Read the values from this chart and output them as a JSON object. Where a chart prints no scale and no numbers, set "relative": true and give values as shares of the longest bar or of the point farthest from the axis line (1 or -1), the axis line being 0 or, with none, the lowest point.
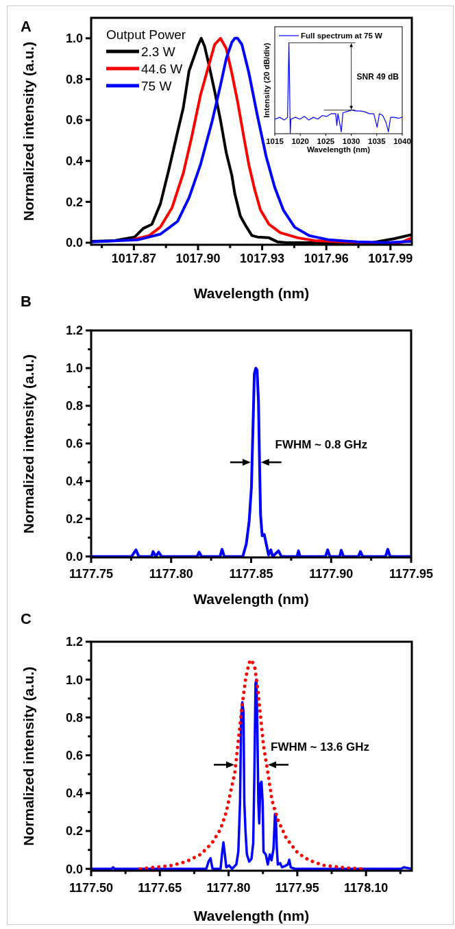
{
  "chart_data": [
    {
      "type": "line",
      "title": "A",
      "xlabel": "Wavelength (nm)",
      "ylabel": "Normalized intensity (a.u.)",
      "legend_title": "Output Power",
      "legend": "top left",
      "xlim": [
        1017.85,
        1018.0
      ],
      "ylim": [
        -0.01,
        1.1
      ],
      "xticks": [
        1017.87,
        {
          "value": 1017.9,
          "label": "1017.90"
        },
        1017.93,
        1017.96,
        1017.99,
        {
          "value": 1017.855,
          "label": null
        },
        {
          "value": 1017.885,
          "label": null
        },
        {
          "value": 1017.915,
          "label": null
        },
        {
          "value": 1017.945,
          "label": null
        },
        {
          "value": 1017.975,
          "label": null
        }
      ],
      "yticks": [
        {
          "value": 0,
          "label": "0.0"
        },
        0.2,
        0.4,
        0.6,
        0.8,
        {
          "value": 1,
          "label": "1.0"
        }
      ],
      "series": [
        {
          "name": "2.3 W",
          "color": "#000000",
          "x": [
            1017.8504,
            1017.861,
            1017.8704,
            1017.8744,
            1017.8784,
            1017.8824,
            1017.8864,
            1017.8904,
            1017.8931,
            1017.8958,
            1017.8985,
            1017.8998,
            1017.9015,
            1017.9031,
            1017.9051,
            1017.9078,
            1017.9105,
            1017.9132,
            1017.9158,
            1017.9172,
            1017.9198,
            1017.9225,
            1017.9252,
            1017.9278,
            1017.9332,
            1017.9372,
            1017.9412,
            1017.9546,
            1017.9679,
            1017.9813,
            1017.992,
            1018.0
          ],
          "values": [
            0.007,
            0.01,
            0.028,
            0.07,
            0.09,
            0.19,
            0.36,
            0.54,
            0.66,
            0.84,
            0.92,
            0.96,
            1.0,
            0.96,
            0.87,
            0.74,
            0.6,
            0.44,
            0.33,
            0.24,
            0.13,
            0.08,
            0.035,
            0.028,
            0.024,
            0.004,
            0,
            0,
            0,
            0,
            0.02,
            0.04
          ]
        },
        {
          "name": "44.6 W",
          "color": "#ff0000",
          "x": [
            1017.8691,
            1017.8771,
            1017.8824,
            1017.8878,
            1017.8931,
            1017.8971,
            1017.9011,
            1017.9051,
            1017.9078,
            1017.9105,
            1017.9132,
            1017.9158,
            1017.9185,
            1017.9212,
            1017.9238,
            1017.9265,
            1017.9292,
            1017.9332,
            1017.9385,
            1017.9466,
            1017.9546,
            1017.9679,
            1017.9813,
            1017.9947,
            1018.0
          ],
          "values": [
            0.014,
            0.035,
            0.077,
            0.17,
            0.34,
            0.52,
            0.72,
            0.87,
            0.97,
            1.0,
            0.95,
            0.83,
            0.69,
            0.53,
            0.38,
            0.26,
            0.16,
            0.09,
            0.049,
            0.024,
            0.01,
            0.004,
            0,
            0,
            0.024
          ]
        },
        {
          "name": "75 W",
          "color": "#0000ff",
          "x": [
            1017.8504,
            1017.8717,
            1017.8824,
            1017.8904,
            1017.8958,
            1017.9011,
            1017.9065,
            1017.9105,
            1017.9132,
            1017.9158,
            1017.9172,
            1017.9185,
            1017.9205,
            1017.9238,
            1017.9278,
            1017.9319,
            1017.9359,
            1017.9399,
            1017.9452,
            1017.9519,
            1017.9613,
            1017.9746,
            1017.988,
            1018.0
          ],
          "values": [
            0.004,
            0.014,
            0.042,
            0.104,
            0.22,
            0.38,
            0.59,
            0.77,
            0.9,
            0.98,
            1.0,
            1.0,
            0.97,
            0.83,
            0.62,
            0.42,
            0.27,
            0.16,
            0.076,
            0.035,
            0.014,
            0.004,
            0,
            0.007
          ]
        }
      ]
    },
    {
      "type": "line",
      "xlabel": "Wavelength (nm)",
      "ylabel": "Intensity (20 dB/div)",
      "legend": "top left",
      "relative": true,
      "xlim": [
        1015,
        1040
      ],
      "xticks": [
        1015,
        1020,
        1025,
        1030,
        1035,
        1040
      ],
      "annotations": [
        "SNR 49 dB"
      ],
      "series": [
        {
          "name": "Full spectrum at 75 W",
          "color": "#0000ff",
          "x": [
            1015.09,
            1015.97,
            1016.85,
            1017.5,
            1017.64,
            1017.77,
            1017.9,
            1018.03,
            1018.16,
            1019.04,
            1019.92,
            1020.8,
            1021.68,
            1022.56,
            1023.44,
            1024.32,
            1025.19,
            1026.07,
            1026.95,
            1027.17,
            1027.39,
            1028.05,
            1028.36,
            1028.93,
            1029.59,
            1030.03,
            1030.91,
            1031.79,
            1032.67,
            1033.55,
            1034.42,
            1035.08,
            1035.52,
            1036.18,
            1036.84,
            1037.28,
            1037.72,
            1038.38,
            1039.26,
            1039.96
          ],
          "values": [
            0.16,
            0.18,
            0.15,
            0.18,
            0.57,
            1.0,
            0.57,
            0.0,
            0.16,
            0.18,
            0.16,
            0.19,
            0.15,
            0.18,
            0.16,
            0.2,
            0.19,
            0.22,
            0.22,
            0.09,
            0.22,
            0.02,
            0.23,
            0.24,
            0.25,
            0.26,
            0.25,
            0.25,
            0.24,
            0.22,
            0.22,
            0.07,
            0.22,
            0.2,
            0.12,
            0.02,
            0.18,
            0.18,
            0.17,
            0.18
          ]
        }
      ]
    },
    {
      "type": "line",
      "title": "B",
      "xlabel": "Wavelength (nm)",
      "ylabel": "Normalized intensity (a.u.)",
      "xlim": [
        1177.75,
        1177.95
      ],
      "ylim": [
        -0.005,
        1.2
      ],
      "xticks": [
        1177.75,
        {
          "value": 1177.8,
          "label": "1177.80"
        },
        1177.85,
        {
          "value": 1177.9,
          "label": "1177.90"
        },
        1177.95,
        {
          "value": 1177.775,
          "label": null
        },
        {
          "value": 1177.825,
          "label": null
        },
        {
          "value": 1177.875,
          "label": null
        },
        {
          "value": 1177.925,
          "label": null
        }
      ],
      "yticks": [
        {
          "value": 0,
          "label": "0.0"
        },
        0.2,
        0.4,
        0.6,
        0.8,
        {
          "value": 1,
          "label": "1.0"
        },
        1.2,
        {
          "value": 0.1,
          "label": null
        },
        {
          "value": 0.3,
          "label": null
        },
        {
          "value": 0.5,
          "label": null
        },
        {
          "value": 0.7,
          "label": null
        },
        {
          "value": 0.9,
          "label": null
        },
        {
          "value": 1.1,
          "label": null
        }
      ],
      "annotations": [
        {
          "text": "FWHM ~ 0.8 GHz",
          "x": 1177.853,
          "y": 0.5
        }
      ],
      "series": [
        {
          "color": "#0000ff",
          "x": [
            1177.75,
            1177.7753,
            1177.778,
            1177.7798,
            1177.7878,
            1177.7887,
            1177.7905,
            1177.7922,
            1177.794,
            1177.8163,
            1177.8175,
            1177.819,
            1177.8306,
            1177.8318,
            1177.8332,
            1177.8448,
            1177.847,
            1177.8488,
            1177.8502,
            1177.8511,
            1177.852,
            1177.8529,
            1177.8537,
            1177.8546,
            1177.8552,
            1177.8559,
            1177.8569,
            1177.8582,
            1177.8594,
            1177.8609,
            1177.8623,
            1177.8635,
            1177.8671,
            1177.8689,
            1177.8787,
            1177.8796,
            1177.8805,
            1177.8965,
            1177.8978,
            1177.8992,
            1177.9054,
            1177.9063,
            1177.9077,
            1177.917,
            1177.9183,
            1177.9197,
            1177.934,
            1177.9354,
            1177.9368,
            1177.95
          ],
          "values": [
            0,
            0,
            0.035,
            0,
            0,
            0.026,
            0,
            0.023,
            0,
            0,
            0.023,
            0,
            0,
            0.038,
            0,
            0,
            0.068,
            0.19,
            0.37,
            0.67,
            0.97,
            1.0,
            0.99,
            0.82,
            0.52,
            0.22,
            0.11,
            0.117,
            0.068,
            0.008,
            0.035,
            0,
            0.03,
            0,
            0,
            0.03,
            0,
            0,
            0.035,
            0,
            0,
            0.033,
            0,
            0,
            0.026,
            0,
            0,
            0.038,
            0,
            0
          ]
        }
      ]
    },
    {
      "type": "line",
      "title": "C",
      "xlabel": "Wavelength (nm)",
      "ylabel": "Normalized intensity (a.u.)",
      "xlim": [
        1177.5,
        1178.2
      ],
      "ylim": [
        -0.01,
        1.2
      ],
      "xticks": [
        {
          "value": 1177.5,
          "label": "1177.50"
        },
        1177.65,
        {
          "value": 1177.8,
          "label": "1177.80"
        },
        1177.95,
        {
          "value": 1178.1,
          "label": "1178.10"
        },
        {
          "value": 1177.575,
          "label": null
        },
        {
          "value": 1177.725,
          "label": null
        },
        {
          "value": 1177.875,
          "label": null
        },
        {
          "value": 1178.025,
          "label": null
        },
        {
          "value": 1178.175,
          "label": null
        }
      ],
      "yticks": [
        {
          "value": 0,
          "label": "0.0"
        },
        0.2,
        0.4,
        0.6,
        0.8,
        {
          "value": 1,
          "label": "1.0"
        },
        1.2,
        {
          "value": 0.1,
          "label": null
        },
        {
          "value": 0.3,
          "label": null
        },
        {
          "value": 0.5,
          "label": null
        },
        {
          "value": 0.7,
          "label": null
        },
        {
          "value": 0.9,
          "label": null
        },
        {
          "value": 1.1,
          "label": null
        }
      ],
      "annotations": [
        {
          "text": "FWHM ~ 13.6 GHz",
          "x": 1177.85,
          "y": 0.55
        }
      ],
      "series": [
        {
          "color": "#0000ff",
          "x": [
            1177.5,
            1177.545,
            1177.5481,
            1177.5513,
            1177.7513,
            1177.7563,
            1177.7606,
            1177.765,
            1177.7825,
            1177.7856,
            1177.7888,
            1177.7919,
            1177.795,
            1177.8013,
            1177.8075,
            1177.8169,
            1177.8213,
            1177.825,
            1177.8275,
            1177.83,
            1177.8325,
            1177.8344,
            1177.8369,
            1177.84,
            1177.845,
            1177.85,
            1177.8538,
            1177.8563,
            1177.8588,
            1177.8606,
            1177.8625,
            1177.865,
            1177.8669,
            1177.8694,
            1177.8719,
            1177.8744,
            1177.8763,
            1177.8813,
            1177.8856,
            1177.89,
            1177.8938,
            1177.8981,
            1177.9013,
            1177.9031,
            1177.905,
            1177.9075,
            1177.9125,
            1177.9169,
            1177.9231,
            1177.9294,
            1177.9325,
            1177.9356,
            1177.945,
            1178.1763,
            1178.1825,
            1178.2
          ],
          "values": [
            0,
            0,
            0.008,
            0,
            0,
            0.038,
            0.056,
            0,
            0,
            0.076,
            0.14,
            0.076,
            0.008,
            0.018,
            0,
            0.023,
            0.09,
            0.35,
            0.8,
            0.88,
            0.83,
            0.35,
            0.2,
            0.076,
            0.038,
            0.053,
            0.136,
            0.5,
            0.98,
            1.0,
            0.8,
            0.35,
            0.24,
            0.45,
            0.46,
            0.35,
            0.09,
            0.076,
            0.023,
            0.076,
            0.045,
            0.106,
            0.29,
            0.285,
            0.121,
            0.023,
            0.03,
            0.008,
            0.015,
            0.023,
            0.048,
            0.008,
            0,
            0,
            0.008,
            0
          ]
        },
        {
          "color": "#ff0000",
          "line_style": "dotted",
          "x": [
            1177.6075,
            1177.6388,
            1177.6763,
            1177.7075,
            1177.7388,
            1177.7638,
            1177.7825,
            1177.795,
            1177.8075,
            1177.8138,
            1177.82,
            1177.8294,
            1177.8375,
            1177.845,
            1177.85,
            1177.8575,
            1177.8638,
            1177.87,
            1177.8763,
            1177.8856,
            1177.895,
            1177.9075,
            1177.9263,
            1177.9513,
            1177.9763,
            1178.0075,
            1178.045,
            1178.0888
          ],
          "values": [
            0,
            0.008,
            0.018,
            0.038,
            0.076,
            0.136,
            0.21,
            0.3,
            0.44,
            0.51,
            0.65,
            0.86,
            1.01,
            1.09,
            1.105,
            1.06,
            0.95,
            0.8,
            0.65,
            0.51,
            0.36,
            0.26,
            0.16,
            0.083,
            0.045,
            0.018,
            0.008,
            0
          ]
        }
      ]
    }
  ]
}
